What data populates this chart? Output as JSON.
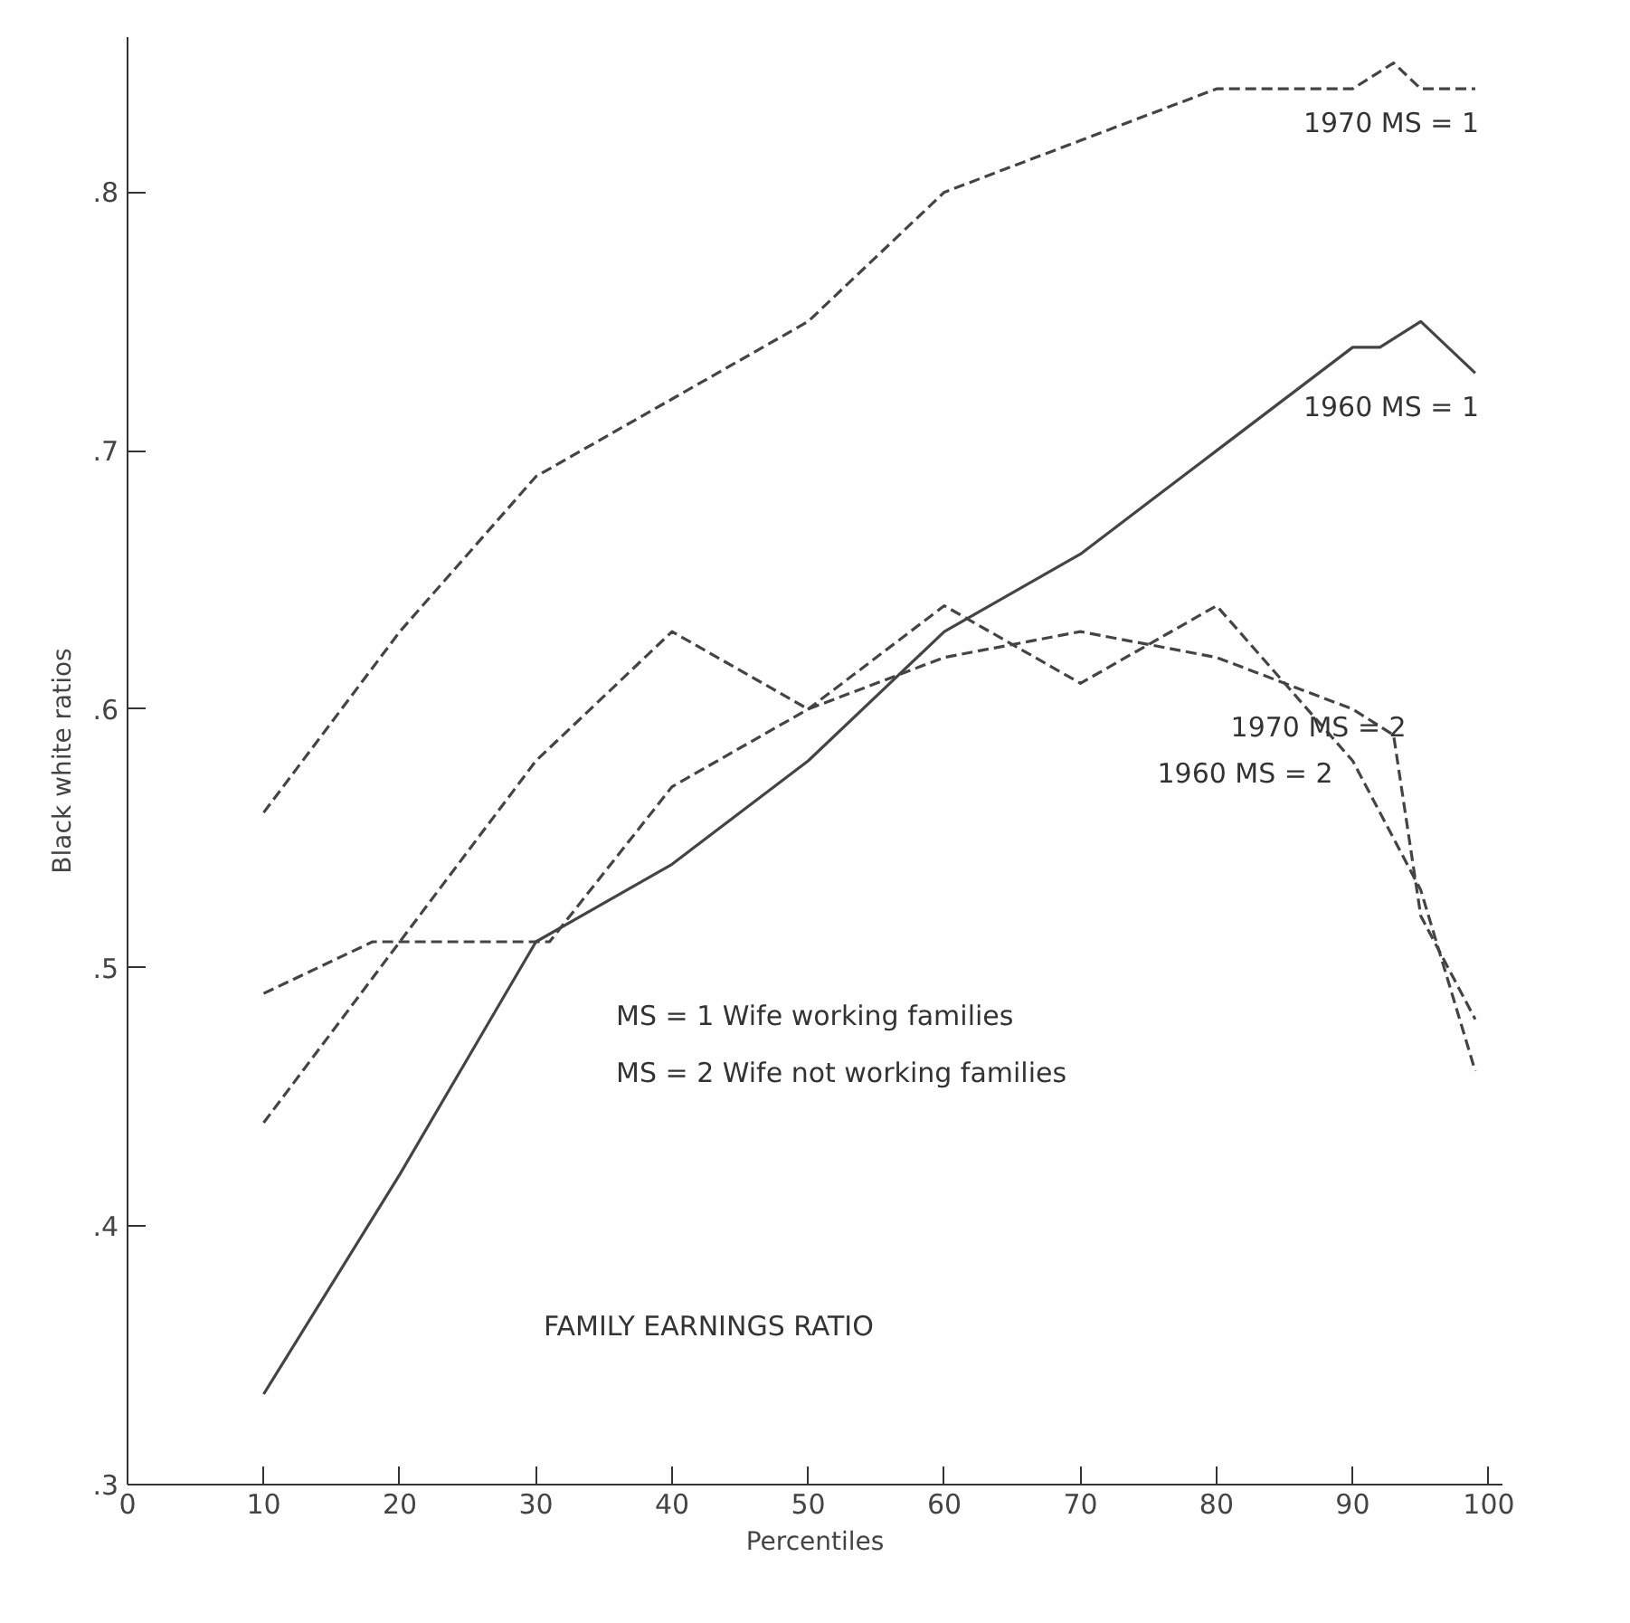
{
  "chart_data": {
    "type": "line",
    "xlabel": "Percentiles",
    "ylabel": "Black white ratios",
    "annotations": [
      "MS = 1 Wife working families",
      "MS = 2 Wife not working families",
      "FAMILY EARNINGS RATIO"
    ],
    "xlim": [
      0,
      101
    ],
    "ylim": [
      0.3,
      0.86
    ],
    "xticks": [
      0,
      10,
      20,
      30,
      40,
      50,
      60,
      70,
      80,
      90,
      100
    ],
    "yticks": [
      {
        "value": 0.3,
        "label": ".3"
      },
      {
        "value": 0.4,
        "label": ".4"
      },
      {
        "value": 0.5,
        "label": ".5"
      },
      {
        "value": 0.6,
        "label": ".6"
      },
      {
        "value": 0.7,
        "label": ".7"
      },
      {
        "value": 0.8,
        "label": ".8"
      }
    ],
    "grid": false,
    "series": [
      {
        "name": "1970 MS = 1",
        "color": "#444444",
        "line_style": "dashed",
        "x": [
          10,
          20,
          30,
          40,
          50,
          60,
          70,
          80,
          90,
          93,
          95,
          99
        ],
        "values": [
          0.56,
          0.63,
          0.69,
          0.72,
          0.75,
          0.8,
          0.82,
          0.84,
          0.84,
          0.85,
          0.84,
          0.84
        ]
      },
      {
        "name": "1960 MS = 1",
        "color": "#444444",
        "line_style": "solid",
        "x": [
          10,
          20,
          30,
          40,
          50,
          60,
          70,
          80,
          90,
          92,
          95,
          99
        ],
        "values": [
          0.335,
          0.42,
          0.51,
          0.54,
          0.58,
          0.63,
          0.66,
          0.7,
          0.74,
          0.74,
          0.75,
          0.73
        ]
      },
      {
        "name": "1970 MS = 2",
        "color": "#444444",
        "line_style": "dashed",
        "x": [
          10,
          20,
          30,
          40,
          50,
          60,
          70,
          80,
          90,
          93,
          95,
          99
        ],
        "values": [
          0.44,
          0.51,
          0.58,
          0.63,
          0.6,
          0.62,
          0.63,
          0.62,
          0.6,
          0.59,
          0.52,
          0.48
        ]
      },
      {
        "name": "1960 MS = 2",
        "color": "#444444",
        "line_style": "dashed",
        "x": [
          10,
          18,
          31,
          40,
          50,
          60,
          70,
          80,
          90,
          95,
          99
        ],
        "values": [
          0.49,
          0.51,
          0.51,
          0.57,
          0.6,
          0.64,
          0.61,
          0.64,
          0.58,
          0.53,
          0.46
        ]
      }
    ]
  }
}
